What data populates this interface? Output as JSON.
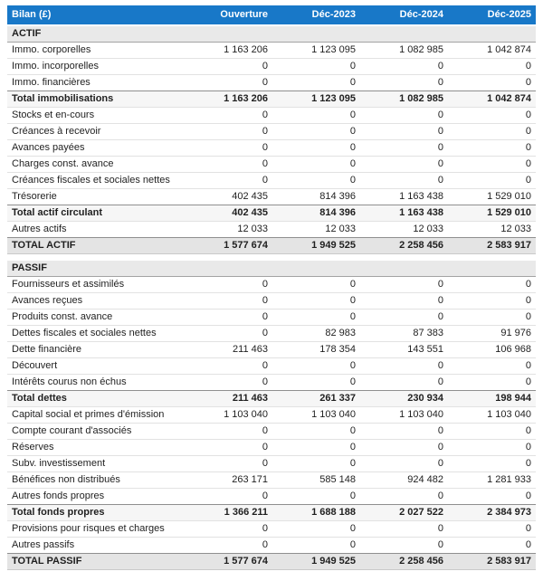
{
  "colors": {
    "header_bg": "#1878c8"
  },
  "table": {
    "columns": [
      "Bilan (£)",
      "Ouverture",
      "Déc-2023",
      "Déc-2024",
      "Déc-2025"
    ],
    "rows": [
      {
        "label": "ACTIF",
        "type": "section",
        "values": [
          "",
          "",
          "",
          ""
        ]
      },
      {
        "label": "Immo. corporelles",
        "type": "item",
        "values": [
          "1 163 206",
          "1 123 095",
          "1 082 985",
          "1 042 874"
        ]
      },
      {
        "label": "Immo. incorporelles",
        "type": "item",
        "values": [
          "0",
          "0",
          "0",
          "0"
        ]
      },
      {
        "label": "Immo. financières",
        "type": "item",
        "values": [
          "0",
          "0",
          "0",
          "0"
        ]
      },
      {
        "label": "Total immobilisations",
        "type": "subtotal",
        "values": [
          "1 163 206",
          "1 123 095",
          "1 082 985",
          "1 042 874"
        ]
      },
      {
        "label": "Stocks et en-cours",
        "type": "item",
        "values": [
          "0",
          "0",
          "0",
          "0"
        ]
      },
      {
        "label": "Créances à recevoir",
        "type": "item",
        "values": [
          "0",
          "0",
          "0",
          "0"
        ]
      },
      {
        "label": "Avances payées",
        "type": "item",
        "values": [
          "0",
          "0",
          "0",
          "0"
        ]
      },
      {
        "label": "Charges const. avance",
        "type": "item",
        "values": [
          "0",
          "0",
          "0",
          "0"
        ]
      },
      {
        "label": "Créances fiscales et sociales nettes",
        "type": "item",
        "values": [
          "0",
          "0",
          "0",
          "0"
        ]
      },
      {
        "label": "Trésorerie",
        "type": "item",
        "values": [
          "402 435",
          "814 396",
          "1 163 438",
          "1 529 010"
        ]
      },
      {
        "label": "Total actif circulant",
        "type": "subtotal",
        "values": [
          "402 435",
          "814 396",
          "1 163 438",
          "1 529 010"
        ]
      },
      {
        "label": "Autres actifs",
        "type": "item",
        "values": [
          "12 033",
          "12 033",
          "12 033",
          "12 033"
        ]
      },
      {
        "label": "TOTAL ACTIF",
        "type": "grand",
        "values": [
          "1 577 674",
          "1 949 525",
          "2 258 456",
          "2 583 917"
        ]
      },
      {
        "label": "PASSIF",
        "type": "section",
        "values": [
          "",
          "",
          "",
          ""
        ]
      },
      {
        "label": "Fournisseurs et assimilés",
        "type": "item",
        "values": [
          "0",
          "0",
          "0",
          "0"
        ]
      },
      {
        "label": "Avances reçues",
        "type": "item",
        "values": [
          "0",
          "0",
          "0",
          "0"
        ]
      },
      {
        "label": "Produits const. avance",
        "type": "item",
        "values": [
          "0",
          "0",
          "0",
          "0"
        ]
      },
      {
        "label": "Dettes fiscales et sociales nettes",
        "type": "item",
        "values": [
          "0",
          "82 983",
          "87 383",
          "91 976"
        ]
      },
      {
        "label": "Dette financière",
        "type": "item",
        "values": [
          "211 463",
          "178 354",
          "143 551",
          "106 968"
        ]
      },
      {
        "label": "Découvert",
        "type": "item",
        "values": [
          "0",
          "0",
          "0",
          "0"
        ]
      },
      {
        "label": "Intérêts courus non échus",
        "type": "item",
        "values": [
          "0",
          "0",
          "0",
          "0"
        ]
      },
      {
        "label": "Total dettes",
        "type": "subtotal",
        "values": [
          "211 463",
          "261 337",
          "230 934",
          "198 944"
        ]
      },
      {
        "label": "Capital social et primes d'émission",
        "type": "item",
        "values": [
          "1 103 040",
          "1 103 040",
          "1 103 040",
          "1 103 040"
        ]
      },
      {
        "label": "Compte courant d'associés",
        "type": "item",
        "values": [
          "0",
          "0",
          "0",
          "0"
        ]
      },
      {
        "label": "Réserves",
        "type": "item",
        "values": [
          "0",
          "0",
          "0",
          "0"
        ]
      },
      {
        "label": "Subv. investissement",
        "type": "item",
        "values": [
          "0",
          "0",
          "0",
          "0"
        ]
      },
      {
        "label": "Bénéfices non distribués",
        "type": "item",
        "values": [
          "263 171",
          "585 148",
          "924 482",
          "1 281 933"
        ]
      },
      {
        "label": "Autres fonds propres",
        "type": "item",
        "values": [
          "0",
          "0",
          "0",
          "0"
        ]
      },
      {
        "label": "Total fonds propres",
        "type": "subtotal",
        "values": [
          "1 366 211",
          "1 688 188",
          "2 027 522",
          "2 384 973"
        ]
      },
      {
        "label": "Provisions pour risques et charges",
        "type": "item",
        "values": [
          "0",
          "0",
          "0",
          "0"
        ]
      },
      {
        "label": "Autres passifs",
        "type": "item",
        "values": [
          "0",
          "0",
          "0",
          "0"
        ]
      },
      {
        "label": "TOTAL PASSIF",
        "type": "grand",
        "values": [
          "1 577 674",
          "1 949 525",
          "2 258 456",
          "2 583 917"
        ]
      }
    ]
  }
}
